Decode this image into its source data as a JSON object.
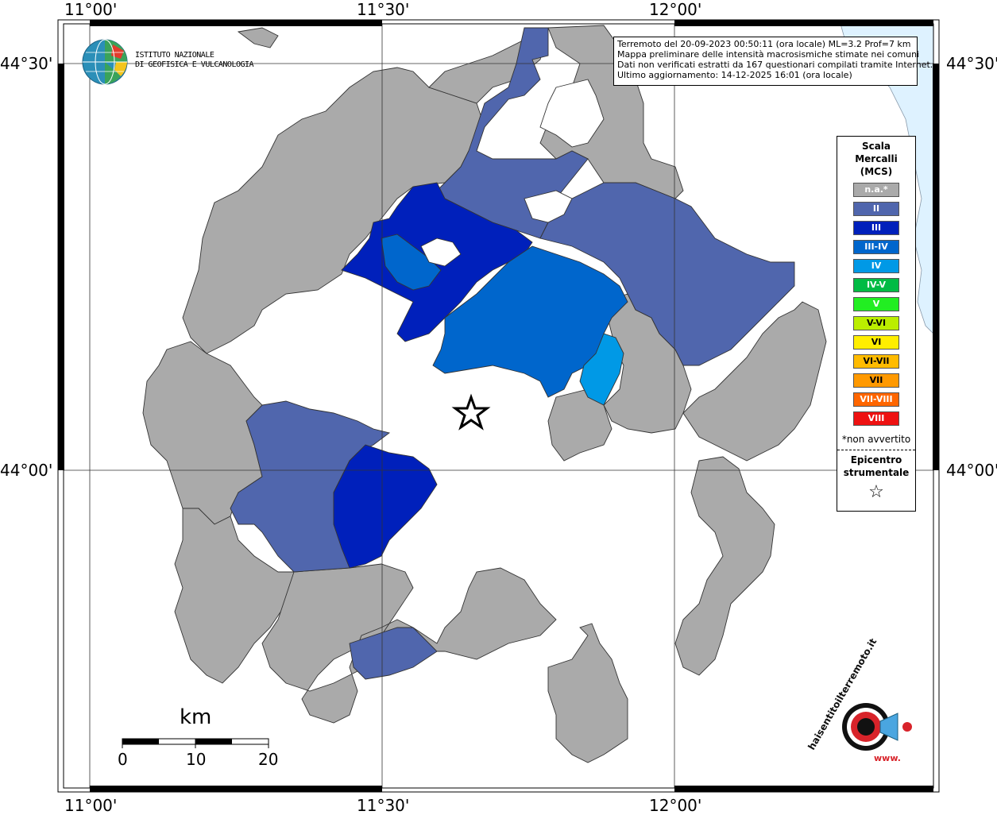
{
  "map": {
    "coord_labels": {
      "top": [
        "11°00'",
        "11°30'",
        "12°00'"
      ],
      "bottom": [
        "11°00'",
        "11°30'",
        "12°00'"
      ],
      "left": [
        "44°30'",
        "44°00'"
      ],
      "right": [
        "44°30'",
        "44°00'"
      ]
    },
    "colors": {
      "land_gray": "#aaaaaa",
      "sea": "#def2ff",
      "intensity_II": "#5066ad",
      "intensity_III": "#0020bb",
      "intensity_IIIIV": "#0066cc",
      "intensity_IV": "#0099e6",
      "border": "#333333"
    },
    "epicenter_symbol": "star-icon"
  },
  "info": {
    "line1": "Terremoto del 20-09-2023 00:50:11 (ora locale) ML=3.2 Prof=7 km",
    "line2": "Mappa preliminare delle intensità macrosismiche stimate nei comuni",
    "line3": "Dati non verificati estratti da 167 questionari compilati tramite Internet.",
    "line4": "Ultimo aggiornamento: 14-12-2025 16:01 (ora locale)"
  },
  "logo_ingv": {
    "line1": "ISTITUTO NAZIONALE",
    "line2": "DI GEOFISICA E VULCANOLOGIA"
  },
  "legend": {
    "title1": "Scala",
    "title2": "Mercalli",
    "title3": "(MCS)",
    "items": [
      {
        "label": "n.a.*",
        "color": "#aaaaaa"
      },
      {
        "label": "II",
        "color": "#5066ad"
      },
      {
        "label": "III",
        "color": "#0020bb"
      },
      {
        "label": "III-IV",
        "color": "#0066cc"
      },
      {
        "label": "IV",
        "color": "#0099e6"
      },
      {
        "label": "IV-V",
        "color": "#00bb44"
      },
      {
        "label": "V",
        "color": "#22ee22"
      },
      {
        "label": "V-VI",
        "color": "#bbee00"
      },
      {
        "label": "VI",
        "color": "#ffee00"
      },
      {
        "label": "VI-VII",
        "color": "#ffbb00"
      },
      {
        "label": "VII",
        "color": "#ff9900"
      },
      {
        "label": "VII-VIII",
        "color": "#ff6600"
      },
      {
        "label": "VIII",
        "color": "#ee1111"
      }
    ],
    "note": "*non avvertito",
    "epi1": "Epicentro",
    "epi2": "strumentale",
    "epi_symbol": "☆"
  },
  "scale_bar": {
    "unit": "km",
    "ticks": [
      "0",
      "10",
      "20"
    ]
  },
  "logo_hsentito": {
    "text": "haisentitoilterremoto.it",
    "url_text": "www.",
    "icon": "megaphone-icon"
  }
}
